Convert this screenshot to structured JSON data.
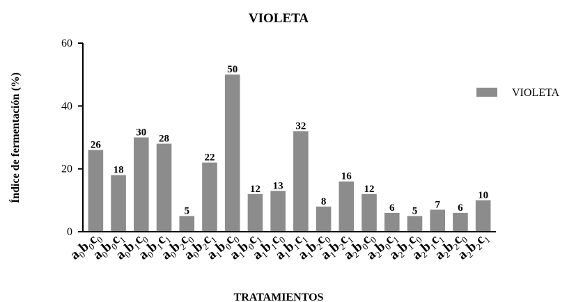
{
  "chart_data": {
    "type": "bar",
    "title": "VIOLETA",
    "xlabel": "TRATAMIENTOS",
    "ylabel": "Índice de fermentación (%)",
    "ylim": [
      0,
      60
    ],
    "yticks": [
      0,
      20,
      40,
      60
    ],
    "grid": false,
    "legend_position": "right",
    "bar_color": "#8c8c8c",
    "categories": [
      "a0b0c0",
      "a0b0c1",
      "a0b1c0",
      "a0b1c1",
      "a0b2c0",
      "a0b2c1",
      "a1b0c0",
      "a1b0c1",
      "a1b1c0",
      "a1b1c1",
      "a1b2c0",
      "a1b2c1",
      "a2b0c0",
      "a2b0c1",
      "a2b1c0",
      "a2b1c1",
      "a2b2c0",
      "a2b2c1"
    ],
    "series": [
      {
        "name": "VIOLETA",
        "values": [
          26,
          18,
          30,
          28,
          5,
          22,
          50,
          12,
          13,
          32,
          8,
          16,
          12,
          6,
          5,
          7,
          6,
          10
        ]
      }
    ]
  }
}
